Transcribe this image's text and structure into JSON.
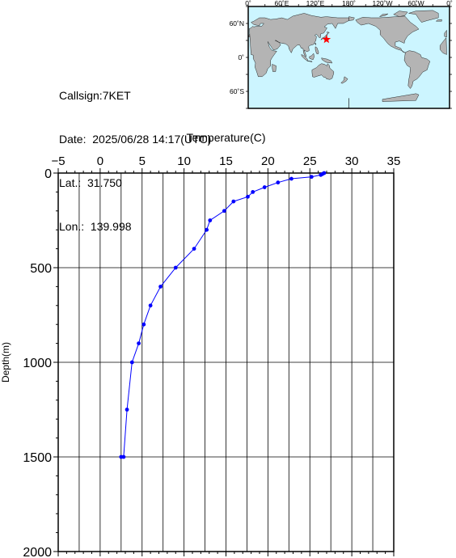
{
  "station": {
    "callsign_text": "Callsign:7KET",
    "date_text": "Date:  2025/06/28 14:17(UTC)",
    "lat_text": "Lat.:  31.750",
    "lon_text": "Lon.:  139.998"
  },
  "map": {
    "top_labels": [
      "0˚",
      "60˚E",
      "120˚E",
      "180˚",
      "120˚W",
      "60˚W",
      "0˚"
    ],
    "left_labels": [
      "60˚N",
      "0˚",
      "60˚S"
    ],
    "ocean_color": "#ccf5ff",
    "land_color": "#b4b4b4",
    "marker_color": "#ff0000",
    "marker": {
      "lat": 31.75,
      "lon": 139.998
    }
  },
  "chart_data": {
    "type": "line",
    "title": "",
    "xlabel": "Temperature(C)",
    "ylabel": "Depth(m)",
    "xlim": [
      -5,
      35
    ],
    "ylim": [
      2000,
      0
    ],
    "x_ticks": [
      "−5",
      "0",
      "5",
      "10",
      "15",
      "20",
      "25",
      "30",
      "35"
    ],
    "y_ticks": [
      "0",
      "500",
      "1000",
      "1500",
      "2000"
    ],
    "grid": true,
    "line_color": "#0000ff",
    "series": [
      {
        "temperature": [
          26.7,
          26.5,
          26.3,
          25.2,
          22.8,
          21.2,
          19.6,
          18.2,
          17.6,
          15.9,
          14.8,
          13.1,
          12.7,
          11.2,
          9.0,
          7.2,
          6.0,
          5.2,
          4.6,
          3.8,
          3.2,
          2.8,
          2.5
        ],
        "depth": [
          0,
          5,
          10,
          20,
          30,
          50,
          75,
          100,
          125,
          150,
          200,
          250,
          300,
          400,
          500,
          600,
          700,
          800,
          900,
          1000,
          1250,
          1500,
          1500
        ]
      }
    ]
  }
}
